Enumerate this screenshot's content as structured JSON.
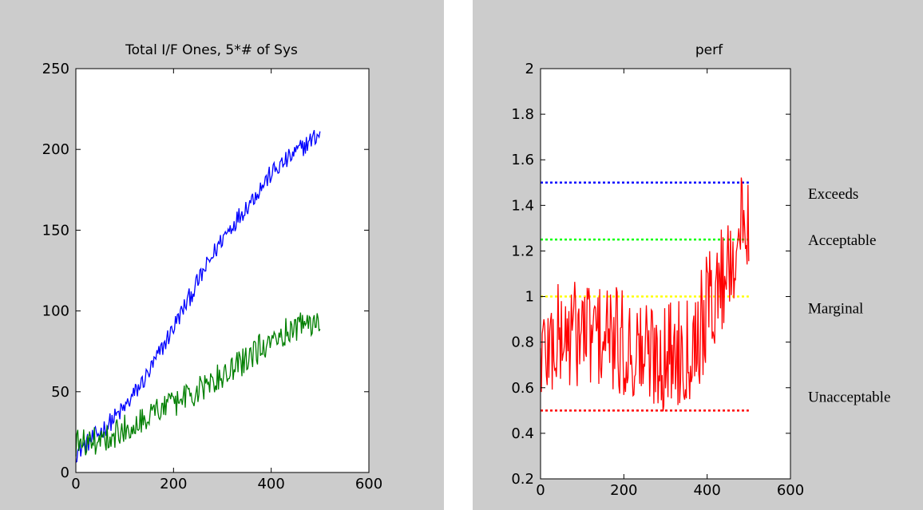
{
  "chart_data": [
    {
      "type": "line",
      "title": "Total I/F Ones, 5*# of Sys",
      "xlim": [
        0,
        600
      ],
      "ylim": [
        0,
        250
      ],
      "x_ticks": [
        0,
        200,
        400,
        600
      ],
      "y_ticks": [
        0,
        50,
        100,
        150,
        200,
        250
      ],
      "x_tick_labels": [
        "0",
        "200",
        "400",
        "600"
      ],
      "y_tick_labels": [
        "0",
        "50",
        "100",
        "150",
        "200",
        "250"
      ],
      "grid": false,
      "series": [
        {
          "color": "#0000ff",
          "x": [
            0,
            50,
            100,
            150,
            200,
            250,
            300,
            350,
            400,
            450,
            500
          ],
          "y": [
            12,
            25,
            40,
            62,
            90,
            118,
            145,
            165,
            185,
            198,
            210
          ],
          "noise": 6
        },
        {
          "color": "#007f00",
          "x": [
            0,
            50,
            100,
            150,
            200,
            250,
            300,
            350,
            400,
            450,
            500
          ],
          "y": [
            18,
            20,
            27,
            36,
            43,
            50,
            60,
            70,
            83,
            90,
            95
          ],
          "noise": 9
        }
      ]
    },
    {
      "type": "line",
      "title": "perf",
      "xlim": [
        0,
        600
      ],
      "ylim": [
        0.2,
        2
      ],
      "x_ticks": [
        0,
        200,
        400,
        600
      ],
      "y_ticks": [
        0.2,
        0.4,
        0.6,
        0.8,
        1,
        1.2,
        1.4,
        1.6,
        1.8,
        2
      ],
      "x_tick_labels": [
        "0",
        "200",
        "400",
        "600"
      ],
      "y_tick_labels": [
        "0.2",
        "0.4",
        "0.6",
        "0.8",
        "1",
        "1.2",
        "1.4",
        "1.6",
        "1.8",
        "2"
      ],
      "grid": false,
      "series": [
        {
          "color": "#ff0000",
          "x": [
            0,
            50,
            100,
            150,
            200,
            250,
            300,
            350,
            380,
            400,
            430,
            460,
            500
          ],
          "y": [
            0.75,
            0.82,
            0.85,
            0.82,
            0.78,
            0.75,
            0.74,
            0.78,
            0.85,
            0.95,
            1.05,
            1.2,
            1.35
          ],
          "noise": 0.25
        }
      ],
      "reference_lines": [
        {
          "label": "Exceeds",
          "y": 1.5,
          "color": "#0000ff"
        },
        {
          "label": "Acceptable",
          "y": 1.25,
          "color": "#00ff00"
        },
        {
          "label": "Marginal",
          "y": 1.0,
          "color": "#ffff00"
        },
        {
          "label": "Unacceptable",
          "y": 0.5,
          "color": "#ff0000"
        }
      ],
      "reference_line_x_range": [
        0,
        500
      ]
    }
  ]
}
